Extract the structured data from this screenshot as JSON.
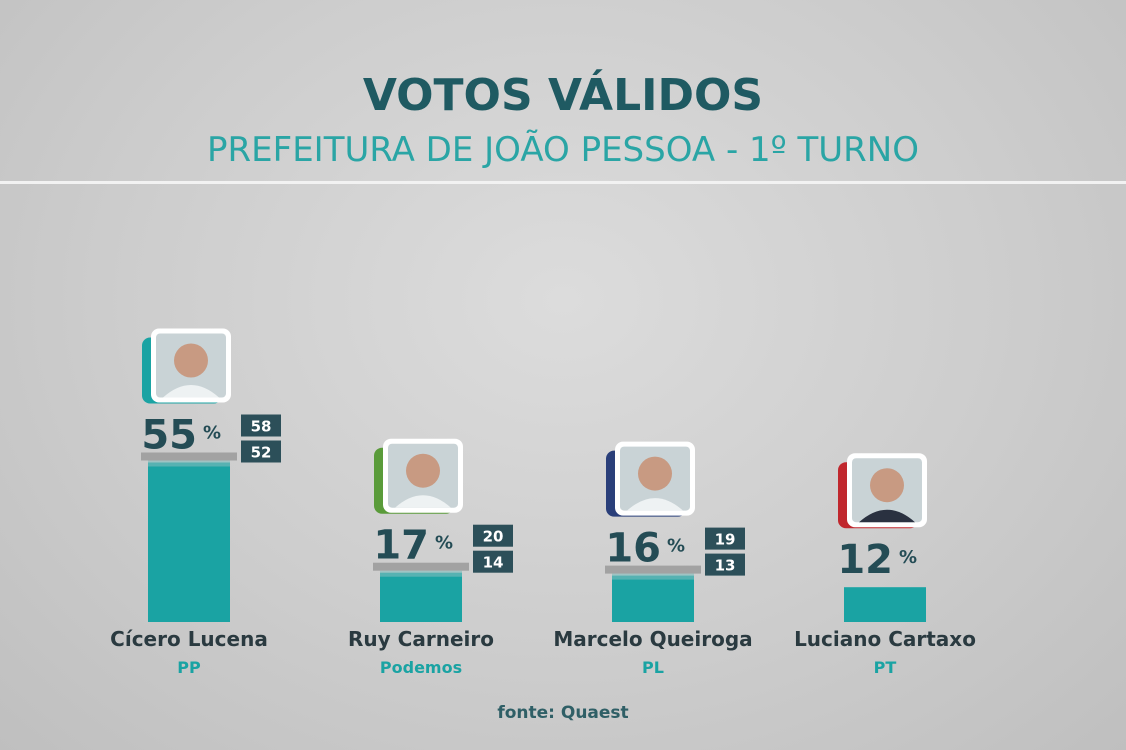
{
  "header": {
    "title": "VOTOS VÁLIDOS",
    "subtitle": "PREFEITURA DE JOÃO PESSOA - 1º TURNO"
  },
  "footer": {
    "source": "fonte: Quaest"
  },
  "colors": {
    "bar": "#1aa3a3",
    "range": "#9a9a9a",
    "value_text": "#244c55",
    "name_text": "#2a3a40",
    "party_text": "#1aa3a3",
    "box_bg": "#2c4f59",
    "box_text": "#ffffff"
  },
  "chart_data": {
    "type": "bar",
    "title": "VOTOS VÁLIDOS",
    "subtitle": "PREFEITURA DE JOÃO PESSOA - 1º TURNO",
    "ylim": [
      0,
      60
    ],
    "unit": "%",
    "series": [
      {
        "values": [
          55,
          17,
          16,
          12
        ],
        "upper": [
          58,
          20,
          19,
          null
        ],
        "lower": [
          52,
          14,
          13,
          null
        ]
      }
    ],
    "categories": [
      "Cícero Lucena",
      "Ruy Carneiro",
      "Marcelo Queiroga",
      "Luciano Cartaxo"
    ],
    "candidates": [
      {
        "name": "Cícero Lucena",
        "party": "PP",
        "value": 55,
        "upper": 58,
        "lower": 52,
        "accent": "#1aa3a3"
      },
      {
        "name": "Ruy Carneiro",
        "party": "Podemos",
        "value": 17,
        "upper": 20,
        "lower": 14,
        "accent": "#5a9b3a"
      },
      {
        "name": "Marcelo Queiroga",
        "party": "PL",
        "value": 16,
        "upper": 19,
        "lower": 13,
        "accent": "#2a3f7a"
      },
      {
        "name": "Luciano Cartaxo",
        "party": "PT",
        "value": 12,
        "upper": null,
        "lower": null,
        "accent": "#c0272d"
      }
    ],
    "percent_sign": "%",
    "grid": false,
    "legend": "none"
  }
}
